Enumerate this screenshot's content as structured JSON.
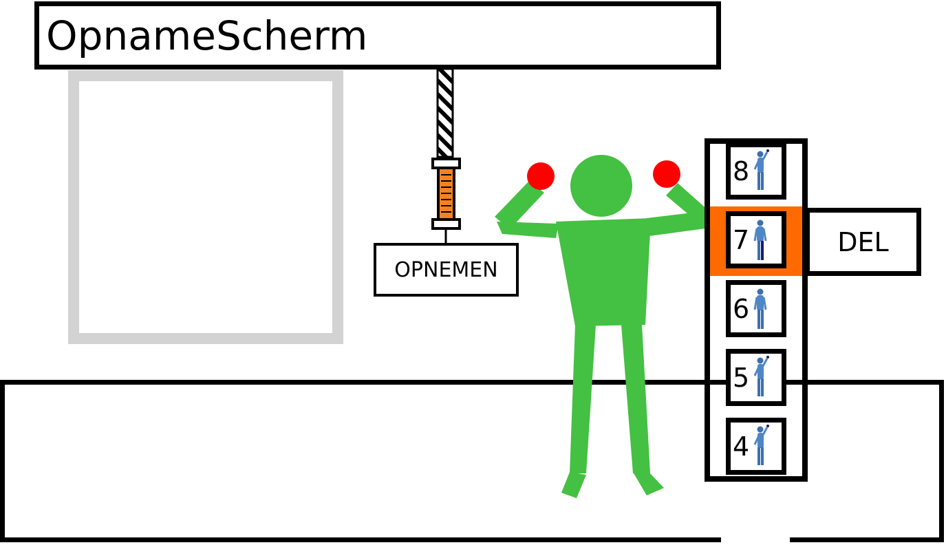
{
  "app": {
    "title": "OpnameScherm"
  },
  "preview": {
    "label": ""
  },
  "controls": {
    "record_label": "OPNEMEN",
    "delete_label": "DEL"
  },
  "slots": {
    "selected": "7",
    "items": [
      {
        "number": "8",
        "pose": "arm-raised-icon"
      },
      {
        "number": "7",
        "pose": "standing-icon"
      },
      {
        "number": "6",
        "pose": "standing-icon"
      },
      {
        "number": "5",
        "pose": "arm-raised-icon"
      },
      {
        "number": "4",
        "pose": "arm-raised-icon"
      }
    ]
  },
  "colors": {
    "figure": "#44c043",
    "hands": "#ff0000",
    "selected_slot": "#ff6a00",
    "preview_border": "#d3d3d3",
    "cable_coil": "#f58220"
  }
}
